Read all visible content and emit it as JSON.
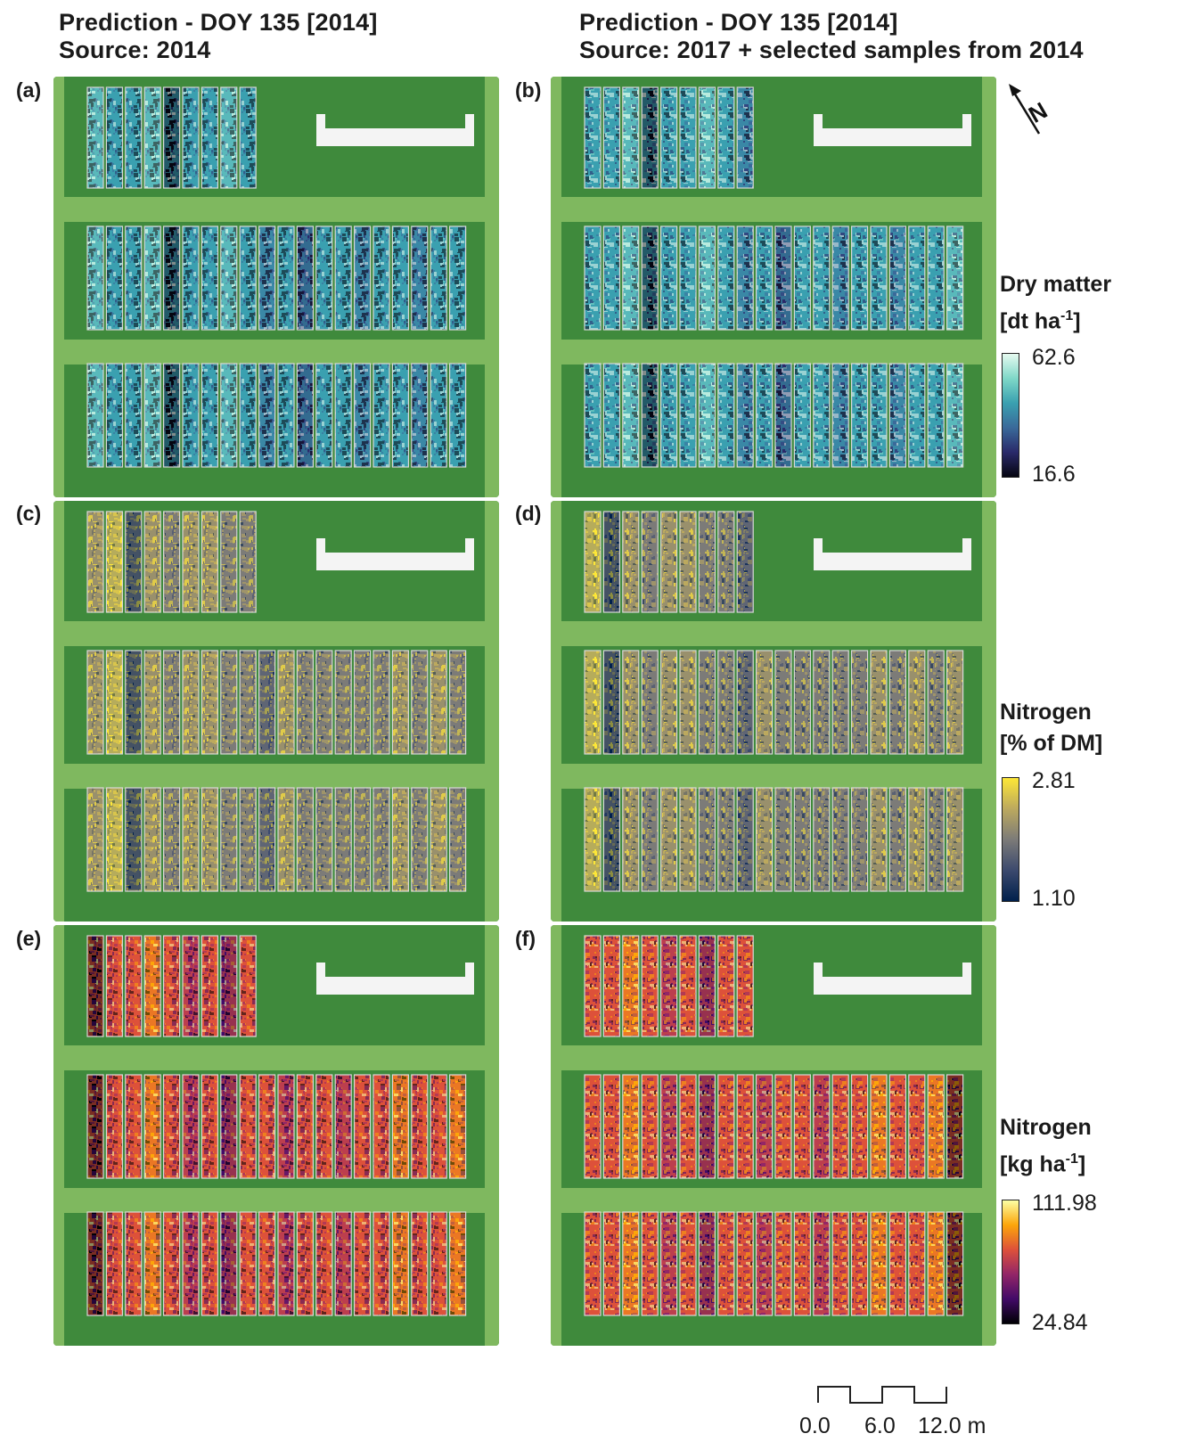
{
  "titles": {
    "left": {
      "line1": "Prediction - DOY 135 [2014]",
      "line2": "Source: 2014"
    },
    "right": {
      "line1": "Prediction - DOY 135 [2014]",
      "line2": "Source: 2017 + selected samples from 2014"
    }
  },
  "panels": [
    {
      "label": "(a)",
      "variable": "dry_matter",
      "source": "2014"
    },
    {
      "label": "(b)",
      "variable": "dry_matter",
      "source": "2017+2014"
    },
    {
      "label": "(c)",
      "variable": "nitrogen_pct",
      "source": "2014"
    },
    {
      "label": "(d)",
      "variable": "nitrogen_pct",
      "source": "2017+2014"
    },
    {
      "label": "(e)",
      "variable": "nitrogen_kg",
      "source": "2014"
    },
    {
      "label": "(f)",
      "variable": "nitrogen_kg",
      "source": "2017+2014"
    }
  ],
  "legends": {
    "dry_matter": {
      "title_line1": "Dry matter",
      "title_line2_pre": "[dt ha",
      "title_sup": "-1",
      "title_line2_post": "]",
      "max": "62.6",
      "min": "16.6",
      "colors": [
        "#050510",
        "#2a2a6a",
        "#3a6a9a",
        "#3aa0b0",
        "#7fd8c8",
        "#e6faf0"
      ]
    },
    "nitrogen_pct": {
      "title_line1": "Nitrogen",
      "title_line2": "[% of DM]",
      "max": "2.81",
      "min": "1.10",
      "colors": [
        "#00204c",
        "#3c4a6e",
        "#7c7b78",
        "#bca95e",
        "#fde737"
      ]
    },
    "nitrogen_kg": {
      "title_line1": "Nitrogen",
      "title_line2_pre": "[kg ha",
      "title_sup": "-1",
      "title_line2_post": "]",
      "max": "111.98",
      "min": "24.84",
      "colors": [
        "#000004",
        "#420a68",
        "#932667",
        "#dd513a",
        "#fca50a",
        "#fcffa4"
      ]
    }
  },
  "scale_bar": {
    "labels": [
      "0.0",
      "6.0",
      "12.0 m"
    ]
  },
  "north_arrow": {
    "letter": "N"
  },
  "colors": {
    "grass": "#3f8a3c",
    "path": "#7fb85f",
    "plot_border": "#d8d8d8"
  }
}
